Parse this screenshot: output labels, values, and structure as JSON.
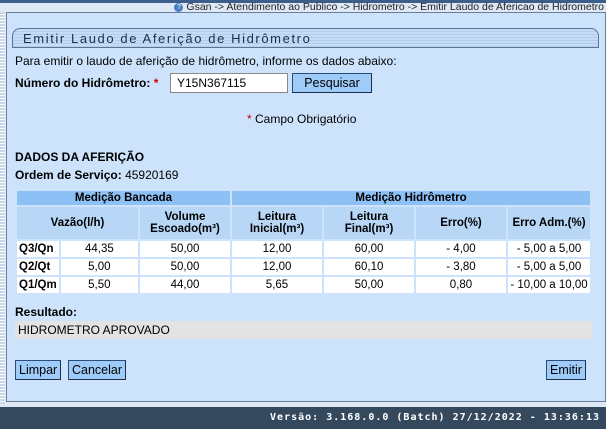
{
  "breadcrumb": "Gsan -> Atendimento ao Publico -> Hidrometro -> Emitir Laudo de Afericao de Hidrometro",
  "title": "Emitir Laudo de Aferição de Hidrômetro",
  "intro": "Para emitir o laudo de aferição de hidrômetro, informe os dados abaixo:",
  "hidrometro_label": "Número do Hidrômetro:",
  "required_mark": "*",
  "hidrometro_value": "Y15N367115",
  "pesquisar": "Pesquisar",
  "campo_obrigatorio": "Campo Obrigatório",
  "section_title": "DADOS DA AFERIÇÃO",
  "ordem_label": "Ordem de Serviço:",
  "ordem_value": "45920169",
  "table": {
    "group_headers": [
      "Medição Bancada",
      "Medição Hidrômetro"
    ],
    "headers": [
      "Vazão(l/h)",
      "Volume Escoado(m³)",
      "Leitura Inicial(m³)",
      "Leitura Final(m³)",
      "Erro(%)",
      "Erro Adm.(%)"
    ],
    "rows": [
      [
        "Q3/Qn",
        "44,35",
        "50,00",
        "12,00",
        "60,00",
        "- 4,00",
        "- 5,00 a 5,00"
      ],
      [
        "Q2/Qt",
        "5,00",
        "50,00",
        "12,00",
        "60,10",
        "- 3,80",
        "- 5,00 a 5,00"
      ],
      [
        "Q1/Qm",
        "5,50",
        "44,00",
        "5,65",
        "50,00",
        "0,80",
        "- 10,00 a 10,00"
      ]
    ]
  },
  "resultado_label": "Resultado:",
  "resultado_value": "HIDROMETRO APROVADO",
  "buttons": {
    "limpar": "Limpar",
    "cancelar": "Cancelar",
    "emitir": "Emitir"
  },
  "footer": "Versão: 3.168.0.0 (Batch) 27/12/2022 - 13:36:13"
}
